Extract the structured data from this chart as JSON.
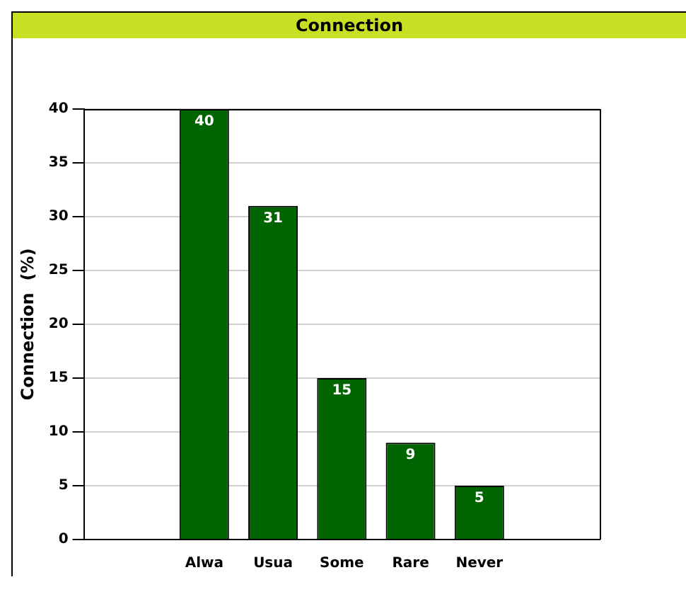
{
  "chart_data": {
    "type": "bar",
    "title": "Connection",
    "ylabel": "Connection  (%)",
    "categories": [
      "Alwa",
      "Usua",
      "Some",
      "Rare",
      "Never"
    ],
    "values": [
      40,
      31,
      15,
      9,
      5
    ],
    "color": "#006400",
    "ylim": [
      0,
      40
    ],
    "yticks": [
      0,
      5,
      10,
      15,
      20,
      25,
      30,
      35,
      40
    ],
    "grid": "y",
    "data_labels": true
  }
}
